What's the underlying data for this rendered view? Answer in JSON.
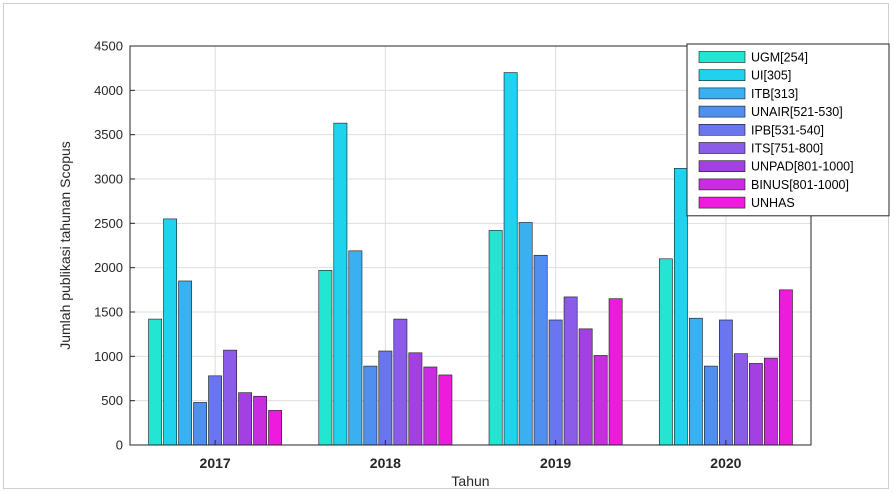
{
  "chart_data": {
    "type": "bar",
    "title": "",
    "xlabel": "Tahun",
    "ylabel": "Jumlah publikasi tahunan Scopus",
    "categories": [
      "2017",
      "2018",
      "2019",
      "2020"
    ],
    "ylim": [
      0,
      4500
    ],
    "yticks": [
      0,
      500,
      1000,
      1500,
      2000,
      2500,
      3000,
      3500,
      4000,
      4500
    ],
    "grid": true,
    "legend_position": "top-right",
    "series": [
      {
        "name": "UGM[254]",
        "color": "#22e6d2",
        "values": [
          1420,
          1970,
          2420,
          2100
        ]
      },
      {
        "name": "UI[305]",
        "color": "#1fd2ee",
        "values": [
          2550,
          3630,
          4200,
          3120
        ]
      },
      {
        "name": "ITB[313]",
        "color": "#3ab0f0",
        "values": [
          1850,
          2190,
          2510,
          1430
        ]
      },
      {
        "name": "UNAIR[521-530]",
        "color": "#4e8ff0",
        "values": [
          480,
          890,
          2140,
          890
        ]
      },
      {
        "name": "IPB[531-540]",
        "color": "#6a76ef",
        "values": [
          780,
          1060,
          1410,
          1410
        ]
      },
      {
        "name": "ITS[751-800]",
        "color": "#8a5ce8",
        "values": [
          1070,
          1420,
          1670,
          1030
        ]
      },
      {
        "name": "UNPAD[801-1000]",
        "color": "#a43fe2",
        "values": [
          590,
          1040,
          1310,
          920
        ]
      },
      {
        "name": "BINUS[801-1000]",
        "color": "#c82ee0",
        "values": [
          550,
          880,
          1010,
          980
        ]
      },
      {
        "name": "UNHAS",
        "color": "#ee1bdc",
        "values": [
          390,
          790,
          1650,
          1750
        ]
      }
    ]
  }
}
